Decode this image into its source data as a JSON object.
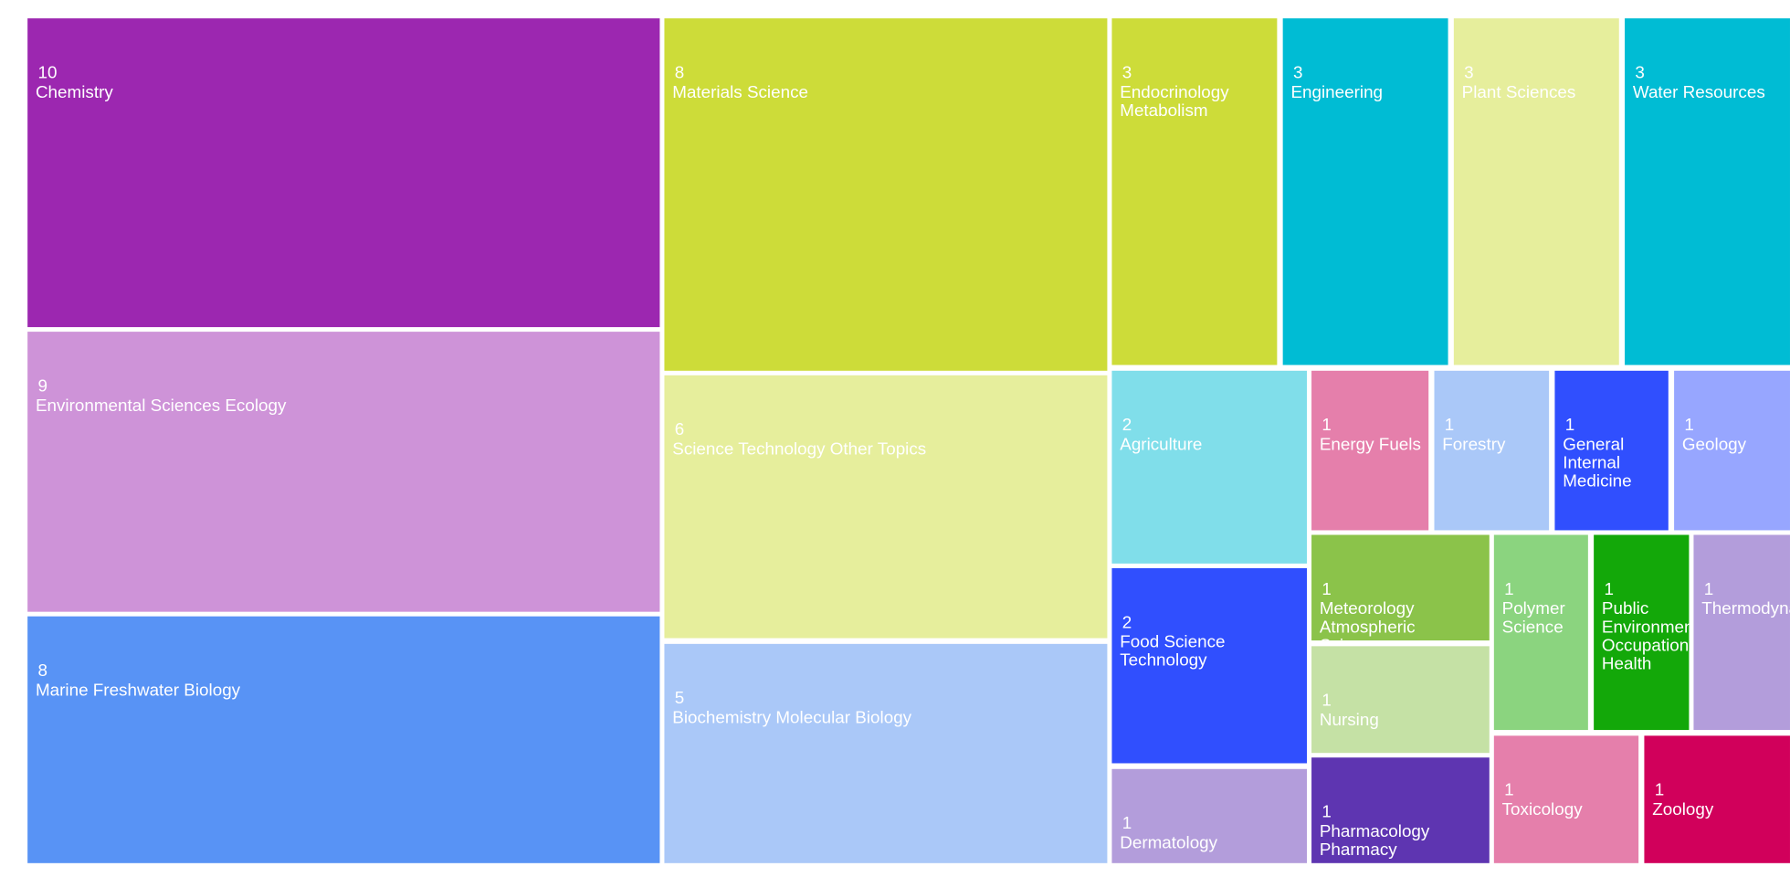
{
  "chart_data": {
    "type": "treemap",
    "title": "",
    "items": [
      {
        "name": "Chemistry",
        "value": 10,
        "color": "#9c27b0"
      },
      {
        "name": "Environmental Sciences Ecology",
        "value": 9,
        "color": "#ce93d8"
      },
      {
        "name": "Marine Freshwater Biology",
        "value": 8,
        "color": "#5893f5"
      },
      {
        "name": "Materials Science",
        "value": 8,
        "color": "#cddc39"
      },
      {
        "name": "Science Technology Other Topics",
        "value": 6,
        "color": "#e6ee9c"
      },
      {
        "name": "Biochemistry Molecular Biology",
        "value": 5,
        "color": "#aac8f8"
      },
      {
        "name": "Endocrinology Metabolism",
        "value": 3,
        "color": "#cddc39"
      },
      {
        "name": "Engineering",
        "value": 3,
        "color": "#00bcd4"
      },
      {
        "name": "Plant Sciences",
        "value": 3,
        "color": "#e6ee9c"
      },
      {
        "name": "Water Resources",
        "value": 3,
        "color": "#00bcd4"
      },
      {
        "name": "Agriculture",
        "value": 2,
        "color": "#80deea"
      },
      {
        "name": "Food Science Technology",
        "value": 2,
        "color": "#304ffe"
      },
      {
        "name": "Dermatology",
        "value": 1,
        "color": "#b39ddb"
      },
      {
        "name": "Energy Fuels",
        "value": 1,
        "color": "#e57fab"
      },
      {
        "name": "Forestry",
        "value": 1,
        "color": "#aac8f8"
      },
      {
        "name": "General Internal Medicine",
        "value": 1,
        "color": "#304ffe"
      },
      {
        "name": "Geology",
        "value": 1,
        "color": "#97a6ff"
      },
      {
        "name": "Meteorology Atmospheric Sciences",
        "value": 1,
        "color": "#8bc34a"
      },
      {
        "name": "Nursing",
        "value": 1,
        "color": "#c5e1a5"
      },
      {
        "name": "Pharmacology Pharmacy",
        "value": 1,
        "color": "#5e35b1"
      },
      {
        "name": "Polymer Science",
        "value": 1,
        "color": "#8bd47f"
      },
      {
        "name": "Public Environmental Occupational Health",
        "value": 1,
        "color": "#13a809"
      },
      {
        "name": "Thermodynamics",
        "value": 1,
        "color": "#b39ddb"
      },
      {
        "name": "Toxicology",
        "value": 1,
        "color": "#e57fab"
      },
      {
        "name": "Zoology",
        "value": 1,
        "color": "#d1005b"
      }
    ]
  }
}
